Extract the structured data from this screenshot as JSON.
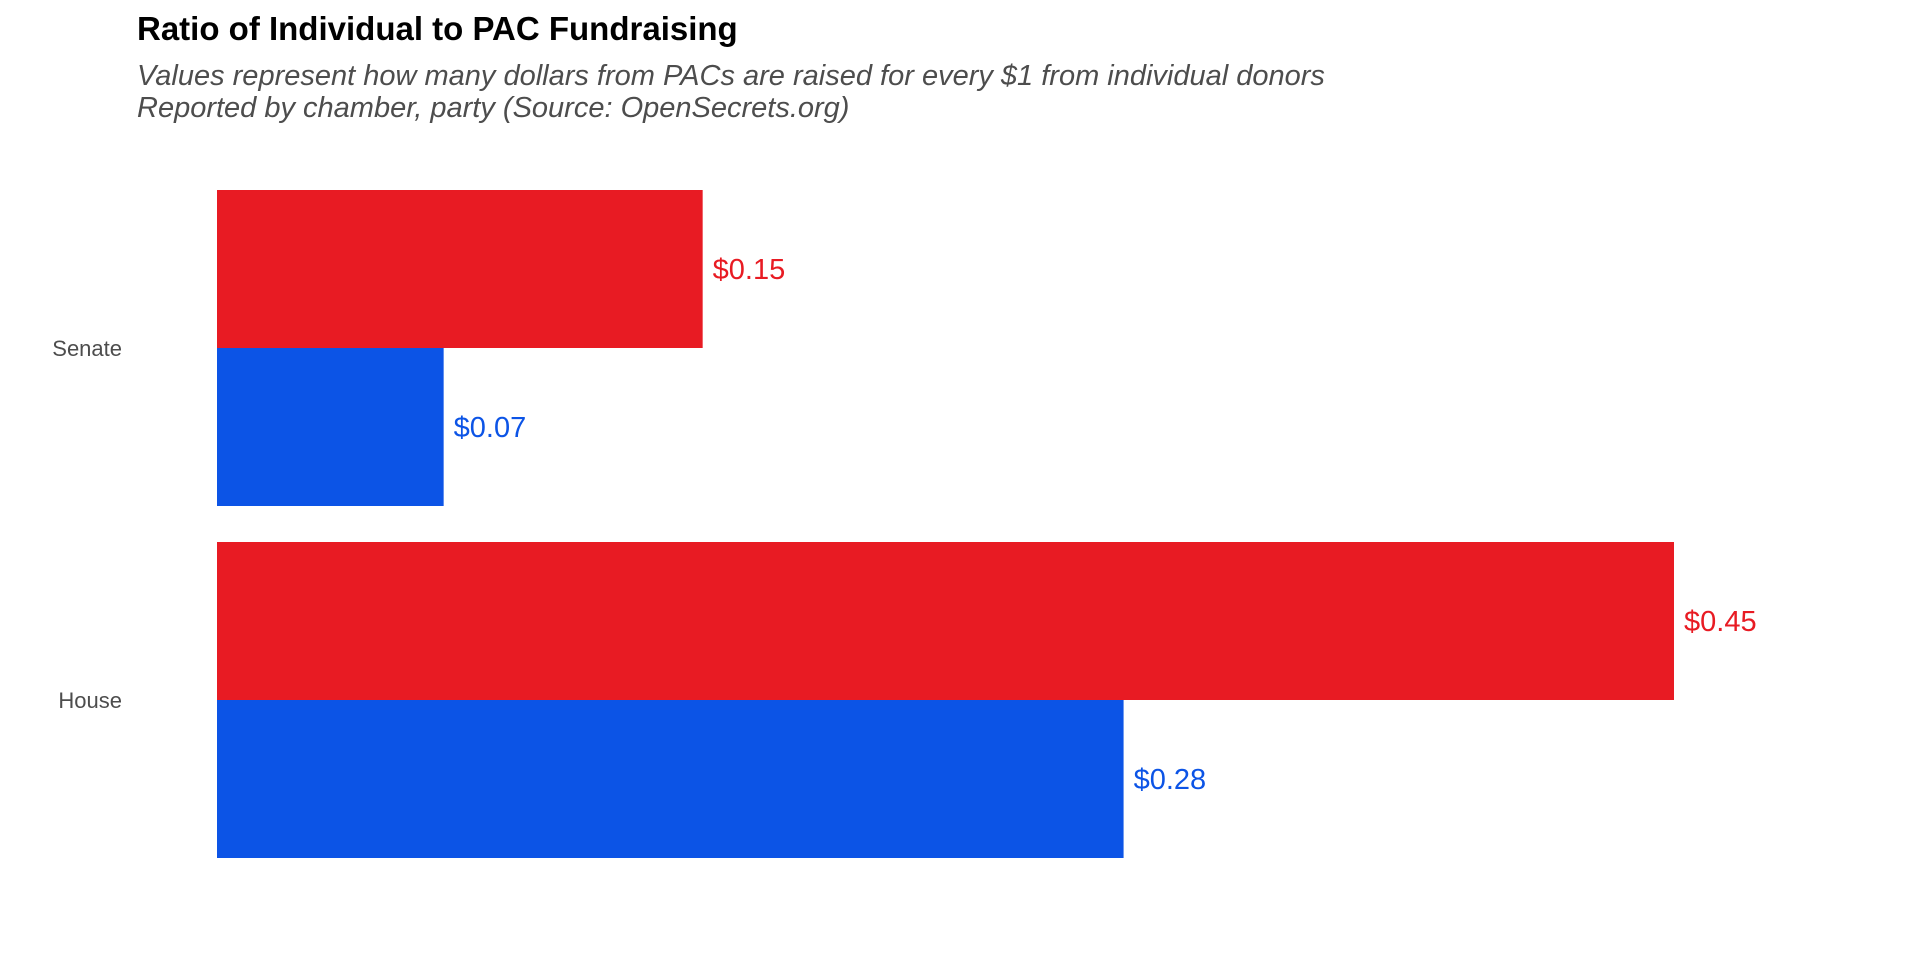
{
  "chart_data": {
    "type": "bar",
    "orientation": "horizontal",
    "title": "Ratio of Individual to PAC Fundraising",
    "subtitle_lines": [
      "Values represent how many dollars from PACs are raised for every $1 from individual donors",
      "Reported by chamber, party (Source: OpenSecrets.org)"
    ],
    "categories": [
      "Senate",
      "House"
    ],
    "series": [
      {
        "color": "#e81b23",
        "values": [
          0.15,
          0.45
        ],
        "labels": [
          "$0.15",
          "$0.45"
        ]
      },
      {
        "color": "#0c54e6",
        "values": [
          0.07,
          0.28
        ],
        "labels": [
          "$0.07",
          "$0.28"
        ]
      }
    ],
    "xlim": [
      0,
      0.45
    ],
    "grid": false,
    "legend": "none",
    "xlabel": "",
    "ylabel": ""
  }
}
